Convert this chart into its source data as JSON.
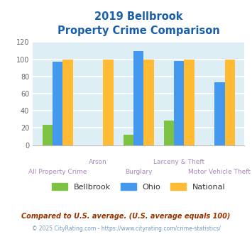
{
  "title_line1": "2019 Bellbrook",
  "title_line2": "Property Crime Comparison",
  "categories": [
    "All Property Crime",
    "Arson",
    "Burglary",
    "Larceny & Theft",
    "Motor Vehicle Theft"
  ],
  "bellbrook": [
    24,
    0,
    12,
    29,
    0
  ],
  "ohio": [
    97,
    0,
    110,
    98,
    73
  ],
  "national": [
    100,
    100,
    100,
    100,
    100
  ],
  "bellbrook_color": "#7dc242",
  "ohio_color": "#4499ee",
  "national_color": "#ffbb33",
  "bg_color": "#ddeef4",
  "ylim": [
    0,
    120
  ],
  "yticks": [
    0,
    20,
    40,
    60,
    80,
    100,
    120
  ],
  "title_color": "#1a5fa8",
  "xlabel_color_top": "#aa88bb",
  "xlabel_color_bottom": "#aa88bb",
  "legend_labels": [
    "Bellbrook",
    "Ohio",
    "National"
  ],
  "footnote1": "Compared to U.S. average. (U.S. average equals 100)",
  "footnote2": "© 2025 CityRating.com - https://www.cityrating.com/crime-statistics/",
  "footnote1_color": "#993300",
  "footnote2_color": "#7799bb",
  "row1_labels": [
    "",
    "Arson",
    "",
    "Larceny & Theft",
    ""
  ],
  "row2_labels": [
    "All Property Crime",
    "",
    "Burglary",
    "",
    "Motor Vehicle Theft"
  ]
}
